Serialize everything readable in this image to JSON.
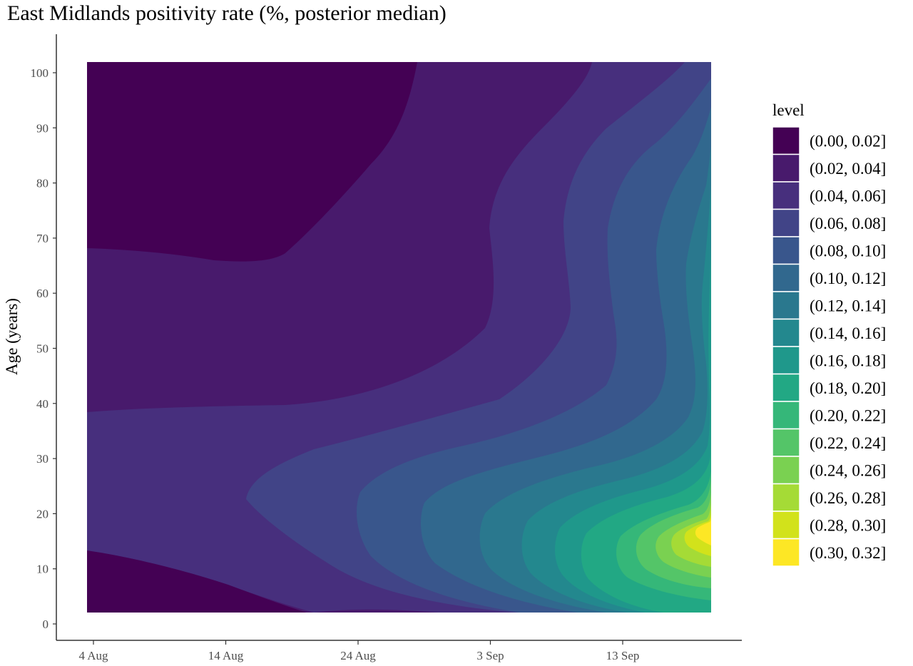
{
  "chart_data": {
    "type": "heatmap",
    "title": "East Midlands positivity rate (%, posterior median)",
    "xlabel": "",
    "ylabel": "Age (years)",
    "x_ticks": [
      "4 Aug",
      "14 Aug",
      "24 Aug",
      "3 Sep",
      "13 Sep"
    ],
    "y_ticks": [
      "0",
      "10",
      "20",
      "30",
      "40",
      "50",
      "60",
      "70",
      "80",
      "90",
      "100"
    ],
    "y_range": [
      0,
      100
    ],
    "legend_title": "level",
    "legend_placement": "right",
    "levels": [
      {
        "label": "(0.00, 0.02]",
        "color": "#440154"
      },
      {
        "label": "(0.02, 0.04]",
        "color": "#481a6c"
      },
      {
        "label": "(0.04, 0.06]",
        "color": "#472f7d"
      },
      {
        "label": "(0.06, 0.08]",
        "color": "#414487"
      },
      {
        "label": "(0.08, 0.10]",
        "color": "#39568c"
      },
      {
        "label": "(0.10, 0.12]",
        "color": "#31688e"
      },
      {
        "label": "(0.12, 0.14]",
        "color": "#2a788e"
      },
      {
        "label": "(0.14, 0.16]",
        "color": "#23888e"
      },
      {
        "label": "(0.16, 0.18]",
        "color": "#1f988b"
      },
      {
        "label": "(0.18, 0.20]",
        "color": "#22a884"
      },
      {
        "label": "(0.20, 0.22]",
        "color": "#35b779"
      },
      {
        "label": "(0.22, 0.24]",
        "color": "#54c568"
      },
      {
        "label": "(0.24, 0.26]",
        "color": "#7ad151"
      },
      {
        "label": "(0.26, 0.28]",
        "color": "#a5db36"
      },
      {
        "label": "(0.28, 0.30]",
        "color": "#d2e21b"
      },
      {
        "label": "(0.30, 0.32]",
        "color": "#fde725"
      }
    ]
  }
}
